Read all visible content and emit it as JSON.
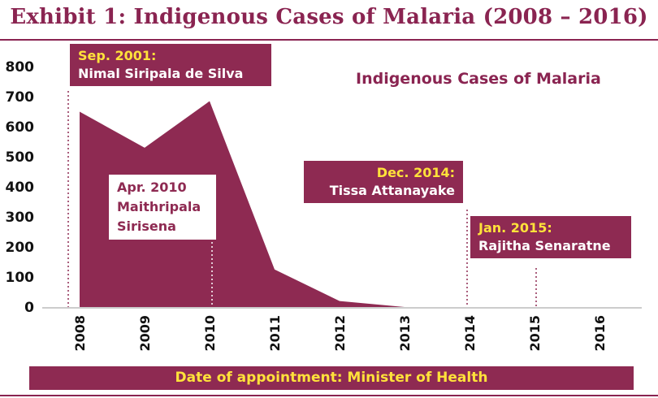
{
  "title": "Exhibit 1: Indigenous Cases of Malaria (2008 – 2016)",
  "footer": "Date of appointment: Minister of Health",
  "chart_data": {
    "type": "area",
    "legend_label": "Indigenous Cases of Malaria",
    "legend_position": "top-right",
    "x": [
      "2008",
      "2009",
      "2010",
      "2011",
      "2012",
      "2013",
      "2014",
      "2015",
      "2016"
    ],
    "series": [
      {
        "name": "Indigenous Cases of Malaria",
        "values": [
          650,
          530,
          685,
          125,
          20,
          0,
          null,
          null,
          null
        ]
      }
    ],
    "y_ticks": [
      "0",
      "100",
      "200",
      "300",
      "400",
      "500",
      "600",
      "700",
      "800"
    ],
    "ylim": [
      0,
      800
    ],
    "grid": false,
    "color": "#8e2a52"
  },
  "annotations": [
    {
      "date": "Sep. 2001:",
      "name": "Nimal Siripala de Silva"
    },
    {
      "date": "Apr. 2010",
      "name1": "Maithripala",
      "name2": "Sirisena"
    },
    {
      "date": "Dec. 2014:",
      "name": "Tissa Attanayake"
    },
    {
      "date": "Jan. 2015:",
      "name": "Rajitha Senaratne"
    }
  ]
}
